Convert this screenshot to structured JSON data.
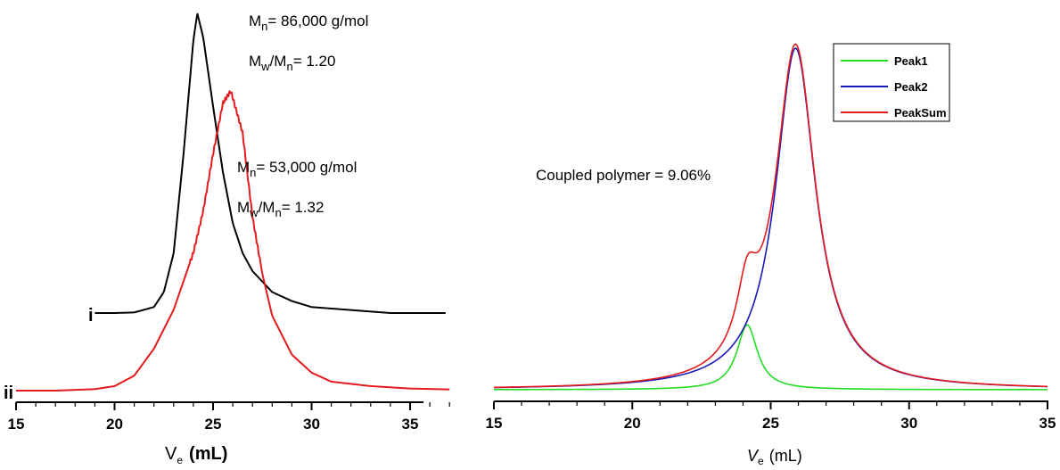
{
  "chart_data": [
    {
      "type": "line",
      "panel": "left",
      "xlabel_symbol": "V",
      "xlabel_subscript": "e",
      "xlabel_unit": "(mL)",
      "xlim": [
        15,
        37
      ],
      "xticks": [
        "15",
        "20",
        "25",
        "30",
        "35"
      ],
      "y_axis_shown": false,
      "grid": false,
      "series": [
        {
          "name": "i",
          "color": "#000000",
          "peak_x": 24.2,
          "x": [
            19.0,
            20.0,
            21.0,
            22.0,
            22.5,
            23.0,
            23.5,
            24.0,
            24.2,
            24.5,
            25.0,
            25.5,
            26.0,
            26.5,
            27.0,
            28.0,
            29.0,
            30.0,
            32.0,
            34.0,
            36.8
          ],
          "y": [
            0.0,
            0.0,
            0.002,
            0.02,
            0.07,
            0.2,
            0.53,
            0.91,
            1.0,
            0.92,
            0.69,
            0.47,
            0.3,
            0.2,
            0.14,
            0.07,
            0.04,
            0.02,
            0.01,
            0.0,
            0.0
          ]
        },
        {
          "name": "ii",
          "color": "#e41a1c",
          "peak_x": 25.9,
          "x": [
            15.0,
            17.0,
            19.0,
            20.0,
            21.0,
            22.0,
            23.0,
            24.0,
            24.5,
            25.0,
            25.5,
            25.9,
            26.5,
            27.0,
            27.5,
            28.0,
            29.0,
            30.0,
            31.0,
            33.0,
            35.0,
            37.0
          ],
          "y": [
            0.0,
            0.0,
            0.005,
            0.015,
            0.05,
            0.14,
            0.27,
            0.46,
            0.6,
            0.79,
            0.96,
            1.0,
            0.86,
            0.58,
            0.39,
            0.25,
            0.12,
            0.06,
            0.03,
            0.015,
            0.007,
            0.004
          ]
        }
      ],
      "annotations": [
        {
          "target": "i",
          "symbol": "M",
          "sub": "n",
          "text": "= 86,000 g/mol"
        },
        {
          "target": "i",
          "symbol": "M",
          "sub": "w",
          "mid": "/M",
          "sub2": "n",
          "text": "= 1.20"
        },
        {
          "target": "ii",
          "symbol": "M",
          "sub": "n",
          "text": "= 53,000 g/mol"
        },
        {
          "target": "ii",
          "symbol": "M",
          "sub": "w",
          "mid": "/M",
          "sub2": "n",
          "text": "= 1.32"
        }
      ]
    },
    {
      "type": "line",
      "panel": "right",
      "xlabel_symbol": "V",
      "xlabel_subscript": "e",
      "xlabel_unit": "(mL)",
      "xlim": [
        15,
        35
      ],
      "xticks": [
        "15",
        "20",
        "25",
        "30",
        "35"
      ],
      "y_axis_shown": false,
      "grid": false,
      "legend_position": "top-right",
      "annotation": "Coupled polymer = 9.06%",
      "series": [
        {
          "name": "Peak1",
          "color": "#22dd22",
          "shape": "peak",
          "center": 24.15,
          "height": 0.19,
          "width": 0.45
        },
        {
          "name": "Peak2",
          "color": "#1a1ab8",
          "shape": "peak",
          "center": 25.9,
          "height": 1.0,
          "width": 0.88
        },
        {
          "name": "PeakSum",
          "color": "#e41a1c",
          "shape": "sum",
          "of": [
            "Peak1",
            "Peak2"
          ]
        }
      ]
    }
  ]
}
